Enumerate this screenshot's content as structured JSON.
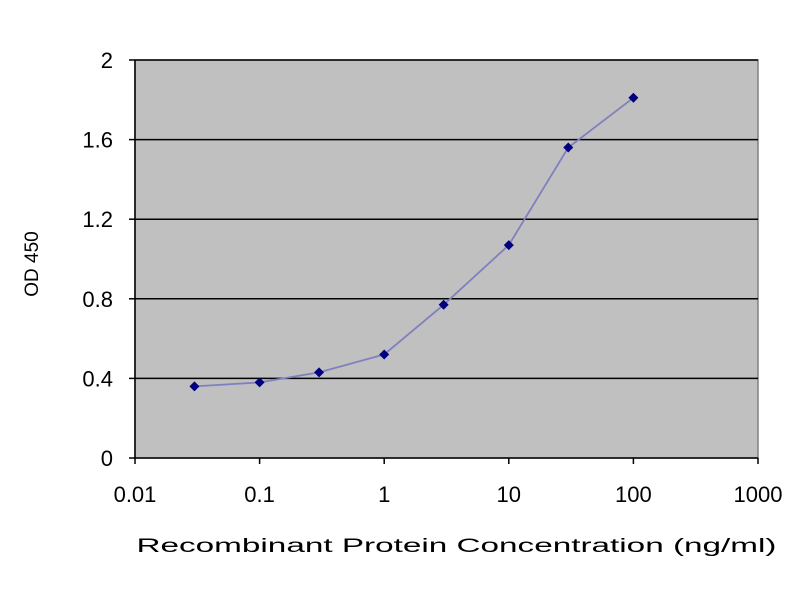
{
  "chart_data": {
    "type": "scatter",
    "title": "",
    "xlabel": "Recombinant Protein Concentration (ng/ml)",
    "ylabel": "OD 450",
    "xscale": "log",
    "xlim": [
      0.01,
      1000
    ],
    "ylim": [
      0,
      2
    ],
    "xticks": [
      0.01,
      0.1,
      1,
      10,
      100,
      1000
    ],
    "xtick_labels": [
      "0.01",
      "0.1",
      "1",
      "10",
      "100",
      "1000"
    ],
    "yticks": [
      0,
      0.4,
      0.8,
      1.2,
      1.6,
      2
    ],
    "ytick_labels": [
      "0",
      "0.4",
      "0.8",
      "1.2",
      "1.6",
      "2"
    ],
    "grid": "horizontal",
    "legend": "none",
    "series": [
      {
        "x": [
          0.03,
          0.1,
          0.3,
          1,
          3,
          10,
          30,
          100
        ],
        "y": [
          0.36,
          0.38,
          0.43,
          0.52,
          0.77,
          1.07,
          1.56,
          1.81
        ]
      }
    ],
    "colors": {
      "plot_background": "#c0c0c0",
      "line": "#8080c0",
      "marker": "#000080",
      "gridline": "#000000"
    }
  }
}
